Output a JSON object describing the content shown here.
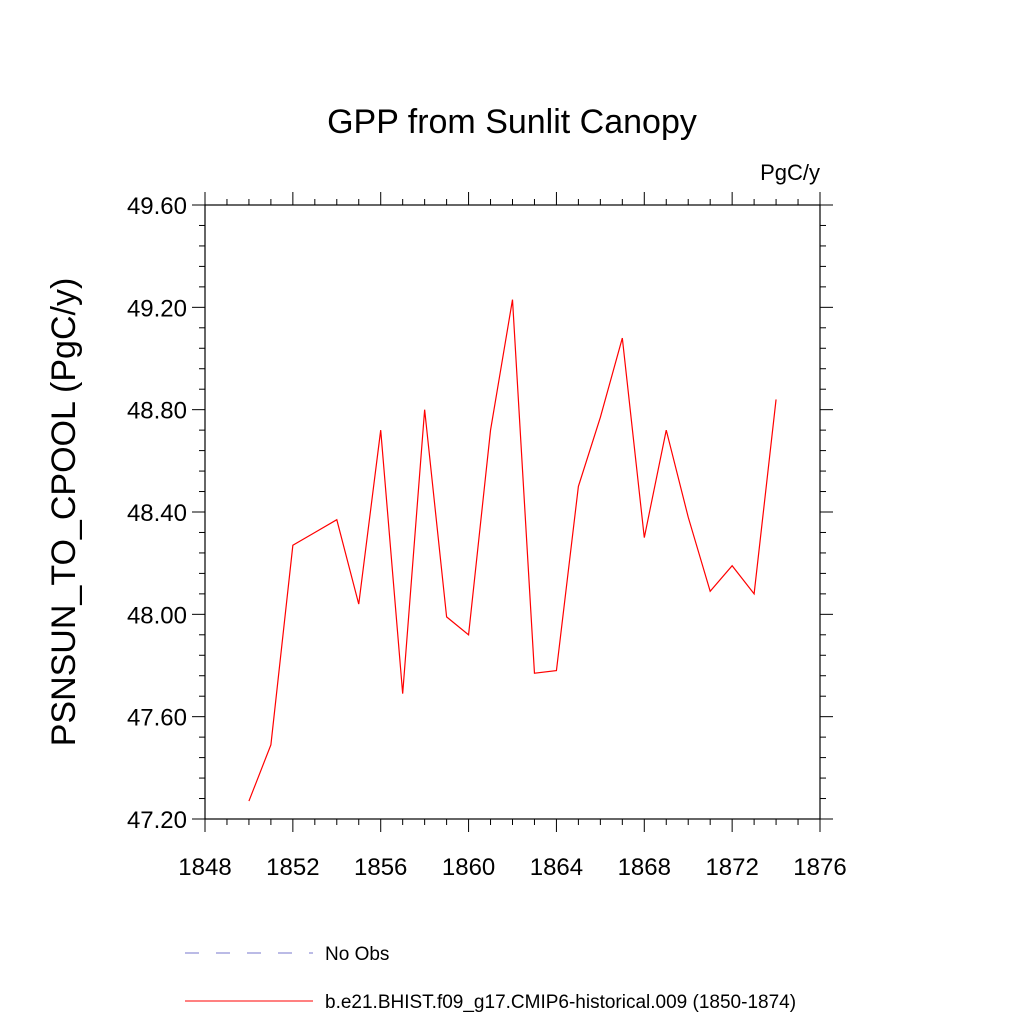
{
  "chart_data": {
    "type": "line",
    "title": "GPP from Sunlit Canopy",
    "units": "PgC/y",
    "xlabel": "",
    "ylabel": "PSNSUN_TO_CPOOL  (PgC/y)",
    "xlim": [
      1848,
      1876
    ],
    "ylim": [
      47.2,
      49.6
    ],
    "x_ticks": [
      1848,
      1852,
      1856,
      1860,
      1864,
      1868,
      1872,
      1876
    ],
    "x_tick_labels": [
      "1848",
      "1852",
      "1856",
      "1860",
      "1864",
      "1868",
      "1872",
      "1876"
    ],
    "y_ticks": [
      47.2,
      47.6,
      48.0,
      48.4,
      48.8,
      49.2,
      49.6
    ],
    "y_tick_labels": [
      "47.20",
      "47.60",
      "48.00",
      "48.40",
      "48.80",
      "49.20",
      "49.60"
    ],
    "grid": false,
    "series": [
      {
        "name": "b.e21.BHIST.f09_g17.CMIP6-historical.009 (1850-1874)",
        "color": "#ff0000",
        "style": "solid",
        "x": [
          1850,
          1851,
          1852,
          1853,
          1854,
          1855,
          1856,
          1857,
          1858,
          1859,
          1860,
          1861,
          1862,
          1863,
          1864,
          1865,
          1866,
          1867,
          1868,
          1869,
          1870,
          1871,
          1872,
          1873,
          1874
        ],
        "values": [
          47.27,
          47.49,
          48.27,
          48.32,
          48.37,
          48.04,
          48.72,
          47.69,
          48.8,
          47.99,
          47.92,
          48.72,
          49.23,
          47.77,
          47.78,
          48.5,
          48.77,
          49.08,
          48.3,
          48.72,
          48.38,
          48.09,
          48.19,
          48.08,
          48.84
        ]
      }
    ],
    "legend": {
      "position": "bottom",
      "entries": [
        {
          "label": "No Obs",
          "color": "#7777cc",
          "style": "dashed"
        },
        {
          "label": "b.e21.BHIST.f09_g17.CMIP6-historical.009 (1850-1874)",
          "color": "#ff0000",
          "style": "solid"
        }
      ]
    }
  }
}
